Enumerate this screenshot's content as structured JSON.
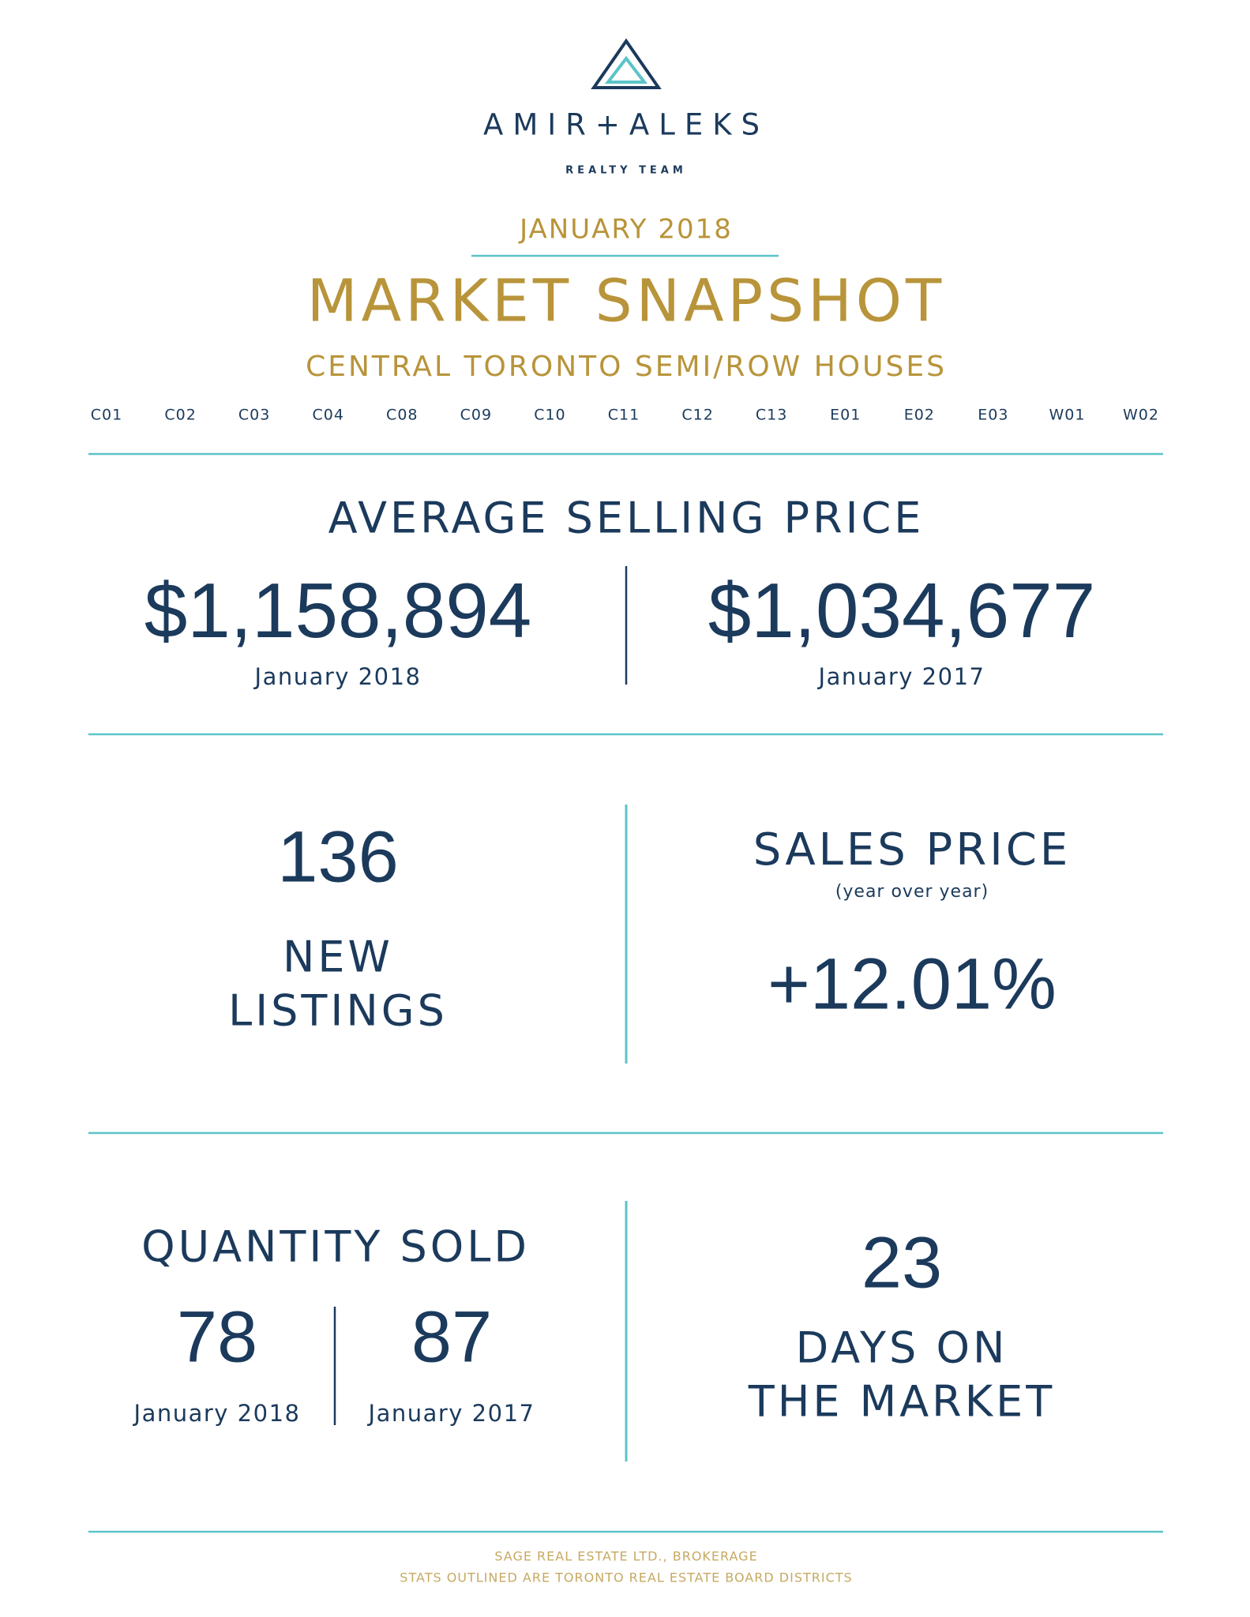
{
  "header": {
    "brand": "AMIR+ALEKS",
    "tagline": "REALTY TEAM",
    "date": "JANUARY 2018",
    "title": "MARKET SNAPSHOT",
    "subtitle": "CENTRAL TORONTO SEMI/ROW HOUSES",
    "districts": [
      "C01",
      "C02",
      "C03",
      "C04",
      "C08",
      "C09",
      "C10",
      "C11",
      "C12",
      "C13",
      "E01",
      "E02",
      "E03",
      "W01",
      "W02"
    ]
  },
  "average_selling_price": {
    "label": "AVERAGE SELLING PRICE",
    "current": {
      "value": "$1,158,894",
      "period": "January 2018"
    },
    "previous": {
      "value": "$1,034,677",
      "period": "January 2017"
    }
  },
  "new_listings": {
    "value": "136",
    "label": [
      "NEW",
      "LISTINGS"
    ]
  },
  "sales_price": {
    "label": "SALES PRICE",
    "note": "(year over year)",
    "value": "+12.01%"
  },
  "quantity_sold": {
    "label": "QUANTITY SOLD",
    "current": {
      "value": "78",
      "period": "January 2018"
    },
    "previous": {
      "value": "87",
      "period": "January 2017"
    }
  },
  "days_on_market": {
    "value": "23",
    "label": [
      "DAYS ON",
      "THE MARKET"
    ]
  },
  "footer": [
    "SAGE REAL ESTATE LTD., BROKERAGE",
    "STATS OUTLINED ARE TORONTO REAL ESTATE BOARD DISTRICTS"
  ]
}
